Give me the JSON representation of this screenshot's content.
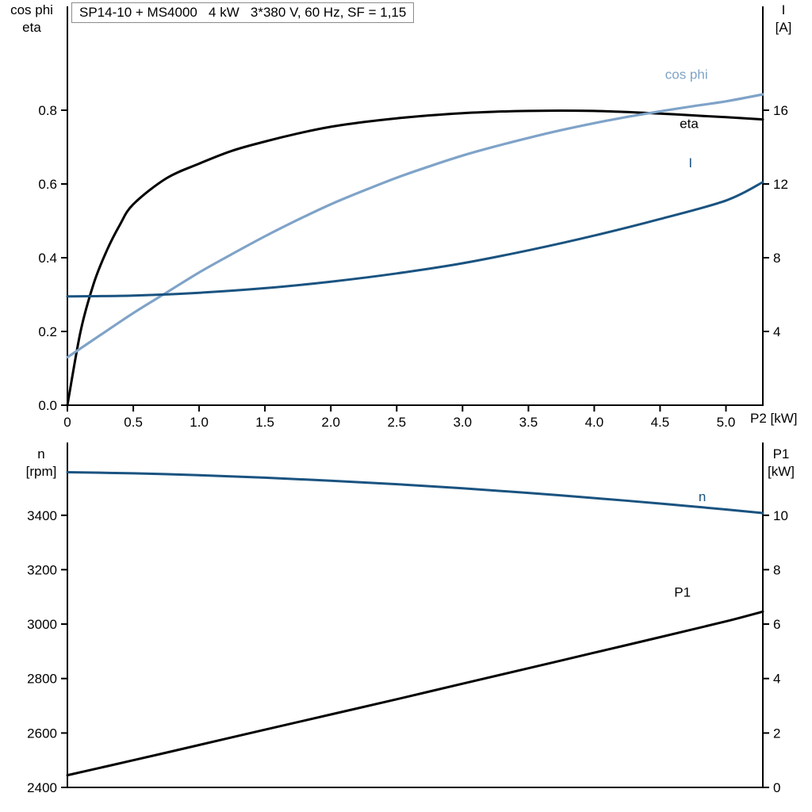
{
  "title_box": "SP14-10 + MS4000   4 kW   3*380 V, 60 Hz, SF = 1,15",
  "colors": {
    "black": "#000000",
    "light_blue": "#7fa3c8",
    "dark_blue": "#1a5380",
    "axis": "#000000",
    "title_border": "#8c8c8c"
  },
  "chart_data": [
    {
      "type": "line",
      "title": "SP14-10 + MS4000   4 kW   3*380 V, 60 Hz, SF = 1,15",
      "x": {
        "label": "P2 [kW]",
        "min": 0,
        "max": 5.28,
        "tick_values": [
          0,
          0.5,
          1,
          1.5,
          2,
          2.5,
          3,
          3.5,
          4,
          4.5,
          5
        ],
        "tick_labels": [
          "0",
          "0.5",
          "1.0",
          "1.5",
          "2.0",
          "2.5",
          "3.0",
          "3.5",
          "4.0",
          "4.5",
          "5.0"
        ]
      },
      "left": {
        "title_lines": [
          "cos phi",
          "eta"
        ],
        "min": 0,
        "max": 1.08,
        "tick_values": [
          0,
          0.2,
          0.4,
          0.6,
          0.8
        ],
        "tick_labels": [
          "0.0",
          "0.2",
          "0.4",
          "0.6",
          "0.8"
        ]
      },
      "right": {
        "title_lines": [
          "I",
          "[A]"
        ],
        "min": 0,
        "max": 21.5,
        "tick_values": [
          4,
          8,
          12,
          16
        ],
        "tick_labels": [
          "4",
          "8",
          "12",
          "16"
        ]
      },
      "series": [
        {
          "name": "eta",
          "label": "eta",
          "axis": "left",
          "color": "#000000",
          "width": 3,
          "x": [
            0,
            0.1,
            0.2,
            0.3,
            0.4,
            0.5,
            0.75,
            1,
            1.25,
            1.5,
            1.75,
            2,
            2.25,
            2.5,
            2.75,
            3,
            3.25,
            3.5,
            3.75,
            4,
            4.25,
            4.5,
            4.75,
            5,
            5.28
          ],
          "y": [
            0,
            0.2,
            0.33,
            0.42,
            0.49,
            0.545,
            0.615,
            0.655,
            0.69,
            0.715,
            0.737,
            0.755,
            0.768,
            0.778,
            0.786,
            0.792,
            0.796,
            0.798,
            0.799,
            0.798,
            0.795,
            0.791,
            0.786,
            0.781,
            0.775
          ],
          "label_at": {
            "x": 4.72,
            "y": 0.752
          }
        },
        {
          "name": "cos_phi",
          "label": "cos phi",
          "axis": "left",
          "color": "#7fa3c8",
          "width": 3.2,
          "x": [
            0,
            0.25,
            0.5,
            0.75,
            1,
            1.25,
            1.5,
            1.75,
            2,
            2.25,
            2.5,
            2.75,
            3,
            3.25,
            3.5,
            3.75,
            4,
            4.25,
            4.5,
            4.75,
            5,
            5.28
          ],
          "y": [
            0.13,
            0.19,
            0.25,
            0.305,
            0.36,
            0.41,
            0.458,
            0.503,
            0.545,
            0.582,
            0.617,
            0.648,
            0.677,
            0.702,
            0.725,
            0.746,
            0.765,
            0.782,
            0.797,
            0.811,
            0.824,
            0.843
          ],
          "label_at": {
            "x": 4.7,
            "y": 0.885
          }
        },
        {
          "name": "current",
          "label": "I",
          "axis": "right",
          "color": "#1a5380",
          "width": 3,
          "x": [
            0,
            0.5,
            1,
            1.5,
            2,
            2.5,
            3,
            3.5,
            4,
            4.5,
            5,
            5.28
          ],
          "y": [
            5.9,
            5.95,
            6.1,
            6.35,
            6.7,
            7.15,
            7.7,
            8.4,
            9.2,
            10.1,
            11.1,
            12.1
          ],
          "label_at": {
            "x": 4.73,
            "y": 12.9
          }
        }
      ]
    },
    {
      "type": "line",
      "title": "",
      "x": {
        "label": "",
        "min": 0,
        "max": 5.28,
        "tick_values": [],
        "tick_labels": []
      },
      "left": {
        "title_lines": [
          "n",
          "[rpm]"
        ],
        "min": 2400,
        "max": 3660,
        "tick_values": [
          2400,
          2600,
          2800,
          3000,
          3200,
          3400
        ],
        "tick_labels": [
          "2400",
          "2600",
          "2800",
          "3000",
          "3200",
          "3400"
        ]
      },
      "right": {
        "title_lines": [
          "P1",
          "[kW]"
        ],
        "min": 0,
        "max": 12.6,
        "tick_values": [
          0,
          2,
          4,
          6,
          8,
          10
        ],
        "tick_labels": [
          "0",
          "2",
          "4",
          "6",
          "8",
          "10"
        ]
      },
      "series": [
        {
          "name": "n",
          "label": "n",
          "axis": "left",
          "color": "#1a5380",
          "width": 3,
          "x": [
            0,
            0.5,
            1,
            1.5,
            2,
            2.5,
            3,
            3.5,
            4,
            4.5,
            5,
            5.28
          ],
          "y": [
            3558,
            3554,
            3547,
            3538,
            3527,
            3514,
            3499,
            3482,
            3463,
            3443,
            3421,
            3408
          ],
          "label_at": {
            "x": 4.82,
            "y": 3452
          }
        },
        {
          "name": "P1",
          "label": "P1",
          "axis": "right",
          "color": "#000000",
          "width": 3,
          "x": [
            0,
            0.5,
            1,
            1.5,
            2,
            2.5,
            3,
            3.5,
            4,
            4.5,
            5,
            5.28
          ],
          "y": [
            0.45,
            1.0,
            1.56,
            2.12,
            2.68,
            3.24,
            3.81,
            4.38,
            4.95,
            5.52,
            6.1,
            6.46
          ],
          "label_at": {
            "x": 4.67,
            "y": 7.0
          }
        }
      ]
    }
  ]
}
